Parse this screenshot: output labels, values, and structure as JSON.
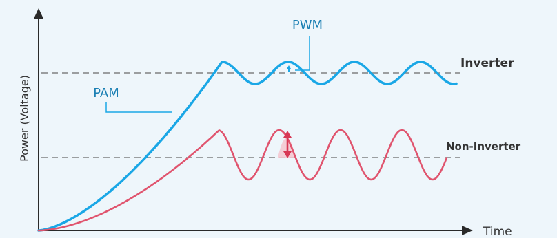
{
  "axes": {
    "y_label": "Power (Voltage)",
    "x_label": "Time"
  },
  "annotations": {
    "pwm": "PWM",
    "pam": "PAM",
    "inverter": "Inverter",
    "non_inverter": "Non-Inverter"
  },
  "colors": {
    "background": "#eef6fb",
    "axis": "#2a2a2a",
    "inverter_curve": "#1aa7e6",
    "non_inverter_curve": "#e0546e",
    "dashed_line": "#6a6a6a",
    "callout_text": "#1a7fb3",
    "amplitude_fill": "#f5c6cf"
  }
}
